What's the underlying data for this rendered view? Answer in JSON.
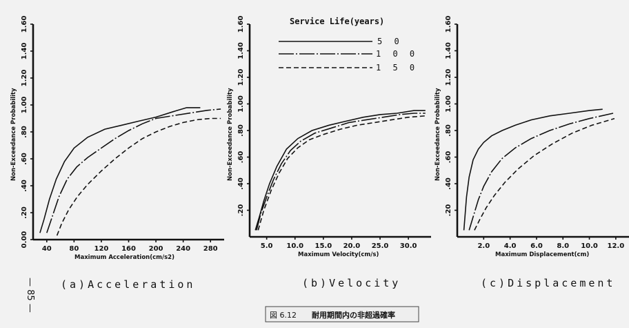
{
  "figure_label": "図 6.12",
  "figure_title": "耐用期間内の非超過確率",
  "page_number": "— 85 —",
  "legend": {
    "title": "Service Life(years)",
    "entries": [
      {
        "label": "5 0",
        "style": "solid"
      },
      {
        "label": "1 0 0",
        "style": "dashdot"
      },
      {
        "label": "1 5 0",
        "style": "dashed"
      }
    ]
  },
  "chart_data": [
    {
      "type": "line",
      "caption": "(a)Acceleration",
      "xlabel": "Maximum Acceleration(cm/s2)",
      "ylabel": "Non-Exceedance Probability",
      "xlim": [
        20,
        300
      ],
      "ylim": [
        0,
        1.6
      ],
      "xticks": [
        40,
        80,
        120,
        160,
        200,
        240,
        280
      ],
      "xtick_labels": [
        "40",
        "80",
        "120",
        "160",
        "200",
        "240",
        "280"
      ],
      "yticks": [
        0,
        0.2,
        0.4,
        0.6,
        0.8,
        1.0,
        1.2,
        1.4,
        1.6
      ],
      "ytick_labels": [
        "0.00",
        ".20",
        ".40",
        ".60",
        ".80",
        "1.00",
        "1.20",
        "1.40",
        "1.60"
      ],
      "series": [
        {
          "name": "5 0",
          "style": "solid",
          "x": [
            30,
            36,
            44,
            54,
            66,
            80,
            100,
            125,
            150,
            175,
            200,
            225,
            245,
            265
          ],
          "y": [
            0.05,
            0.15,
            0.3,
            0.45,
            0.58,
            0.68,
            0.76,
            0.82,
            0.85,
            0.88,
            0.91,
            0.95,
            0.98,
            0.98
          ]
        },
        {
          "name": "1 0 0",
          "style": "dashdot",
          "x": [
            40,
            48,
            58,
            70,
            84,
            100,
            120,
            140,
            160,
            180,
            200,
            225,
            250,
            275,
            295
          ],
          "y": [
            0.05,
            0.17,
            0.32,
            0.45,
            0.54,
            0.61,
            0.68,
            0.75,
            0.81,
            0.86,
            0.9,
            0.92,
            0.94,
            0.96,
            0.97
          ]
        },
        {
          "name": "1 5 0",
          "style": "dashed",
          "x": [
            55,
            62,
            72,
            85,
            100,
            120,
            140,
            160,
            180,
            200,
            220,
            240,
            260,
            280,
            295
          ],
          "y": [
            0.03,
            0.12,
            0.22,
            0.32,
            0.41,
            0.51,
            0.6,
            0.68,
            0.75,
            0.8,
            0.84,
            0.87,
            0.89,
            0.9,
            0.9
          ]
        }
      ]
    },
    {
      "type": "line",
      "caption": "(b)Velocity",
      "xlabel": "Maximum Velocity(cm/s)",
      "ylabel": "Non-Exceedance Probability",
      "xlim": [
        2,
        34
      ],
      "ylim": [
        0,
        1.6
      ],
      "xticks": [
        5,
        10,
        15,
        20,
        25,
        30
      ],
      "xtick_labels": [
        "5.0",
        "10.0",
        "15.0",
        "20.0",
        "25.0",
        "30.0"
      ],
      "yticks": [
        0.2,
        0.4,
        0.6,
        0.8,
        1.0,
        1.2,
        1.4,
        1.6
      ],
      "ytick_labels": [
        ".20",
        ".40",
        ".60",
        ".80",
        "1.00",
        "1.20",
        "1.40",
        "1.60"
      ],
      "series": [
        {
          "name": "5 0",
          "style": "solid",
          "x": [
            3,
            3.7,
            4.5,
            5.5,
            6.8,
            8.5,
            10.5,
            13,
            16,
            19,
            22,
            25,
            28,
            31,
            33
          ],
          "y": [
            0.05,
            0.15,
            0.27,
            0.4,
            0.53,
            0.66,
            0.74,
            0.8,
            0.84,
            0.87,
            0.9,
            0.92,
            0.93,
            0.95,
            0.95
          ]
        },
        {
          "name": "1 0 0",
          "style": "dashdot",
          "x": [
            3.2,
            4,
            5,
            6.2,
            7.6,
            9.2,
            11,
            13.5,
            16.5,
            19.5,
            22.5,
            25.5,
            28.5,
            31,
            33
          ],
          "y": [
            0.05,
            0.18,
            0.3,
            0.43,
            0.55,
            0.65,
            0.72,
            0.78,
            0.82,
            0.86,
            0.88,
            0.9,
            0.92,
            0.93,
            0.93
          ]
        },
        {
          "name": "1 5 0",
          "style": "dashed",
          "x": [
            3.5,
            4.5,
            5.8,
            7.2,
            8.7,
            10.5,
            12.5,
            15,
            18,
            21,
            24,
            27,
            30,
            33
          ],
          "y": [
            0.05,
            0.2,
            0.35,
            0.48,
            0.59,
            0.67,
            0.73,
            0.77,
            0.81,
            0.84,
            0.86,
            0.88,
            0.9,
            0.91
          ]
        }
      ]
    },
    {
      "type": "line",
      "caption": "(c)Displacement",
      "xlabel": "Maximum Displacement(cm)",
      "ylabel": "Non-Exceedance Probability",
      "xlim": [
        0,
        13
      ],
      "ylim": [
        0,
        1.6
      ],
      "xticks": [
        2,
        4,
        6,
        8,
        10,
        12
      ],
      "xtick_labels": [
        "2.0",
        "4.0",
        "6.0",
        "8.0",
        "10.0",
        "12.0"
      ],
      "yticks": [
        0.2,
        0.4,
        0.6,
        0.8,
        1.0,
        1.2,
        1.4,
        1.6
      ],
      "ytick_labels": [
        ".20",
        ".40",
        ".60",
        ".80",
        "1.00",
        "1.20",
        "1.40",
        "1.60"
      ],
      "series": [
        {
          "name": "5 0",
          "style": "solid",
          "x": [
            0.5,
            0.7,
            0.9,
            1.2,
            1.6,
            2.0,
            2.6,
            3.4,
            4.4,
            5.6,
            7.0,
            8.5,
            10.0,
            11.0
          ],
          "y": [
            0.05,
            0.3,
            0.45,
            0.58,
            0.66,
            0.71,
            0.76,
            0.8,
            0.84,
            0.88,
            0.91,
            0.93,
            0.95,
            0.96
          ]
        },
        {
          "name": "1 0 0",
          "style": "dashdot",
          "x": [
            0.9,
            1.2,
            1.6,
            2.0,
            2.6,
            3.4,
            4.4,
            5.6,
            7.0,
            8.5,
            10.0,
            11.8
          ],
          "y": [
            0.05,
            0.15,
            0.28,
            0.38,
            0.49,
            0.59,
            0.67,
            0.74,
            0.8,
            0.85,
            0.89,
            0.93
          ]
        },
        {
          "name": "1 5 0",
          "style": "dashed",
          "x": [
            1.3,
            1.7,
            2.2,
            2.8,
            3.6,
            4.6,
            5.8,
            7.2,
            8.7,
            10.2,
            11.9
          ],
          "y": [
            0.05,
            0.13,
            0.22,
            0.31,
            0.41,
            0.51,
            0.61,
            0.7,
            0.78,
            0.84,
            0.89
          ]
        }
      ]
    }
  ]
}
